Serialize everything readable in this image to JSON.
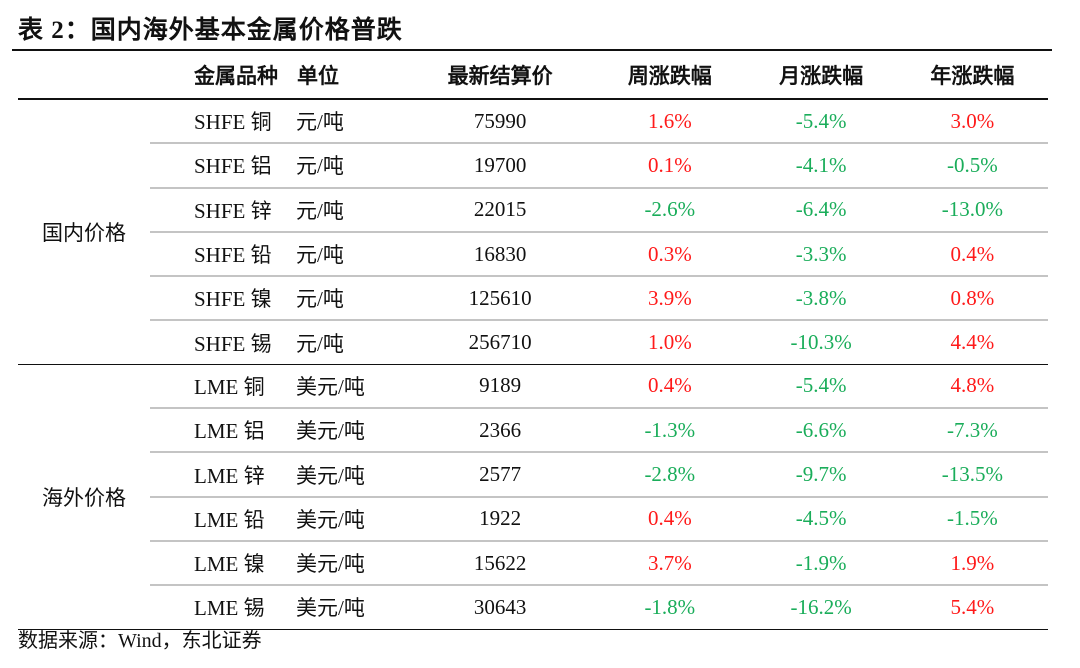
{
  "title": "表 2：国内海外基本金属价格普跌",
  "headers": [
    "金属品种",
    "单位",
    "最新结算价",
    "周涨跌幅",
    "月涨跌幅",
    "年涨跌幅"
  ],
  "groups": [
    {
      "label": "国内价格",
      "rows": [
        [
          "SHFE 铜",
          "元/吨",
          "75990",
          "1.6%",
          "-5.4%",
          "3.0%"
        ],
        [
          "SHFE 铝",
          "元/吨",
          "19700",
          "0.1%",
          "-4.1%",
          "-0.5%"
        ],
        [
          "SHFE 锌",
          "元/吨",
          "22015",
          "-2.6%",
          "-6.4%",
          "-13.0%"
        ],
        [
          "SHFE 铅",
          "元/吨",
          "16830",
          "0.3%",
          "-3.3%",
          "0.4%"
        ],
        [
          "SHFE 镍",
          "元/吨",
          "125610",
          "3.9%",
          "-3.8%",
          "0.8%"
        ],
        [
          "SHFE 锡",
          "元/吨",
          "256710",
          "1.0%",
          "-10.3%",
          "4.4%"
        ]
      ]
    },
    {
      "label": "海外价格",
      "rows": [
        [
          "LME 铜",
          "美元/吨",
          "9189",
          "0.4%",
          "-5.4%",
          "4.8%"
        ],
        [
          "LME 铝",
          "美元/吨",
          "2366",
          "-1.3%",
          "-6.6%",
          "-7.3%"
        ],
        [
          "LME 锌",
          "美元/吨",
          "2577",
          "-2.8%",
          "-9.7%",
          "-13.5%"
        ],
        [
          "LME 铅",
          "美元/吨",
          "1922",
          "0.4%",
          "-4.5%",
          "-1.5%"
        ],
        [
          "LME 镍",
          "美元/吨",
          "15622",
          "3.7%",
          "-1.9%",
          "1.9%"
        ],
        [
          "LME 锡",
          "美元/吨",
          "30643",
          "-1.8%",
          "-16.2%",
          "5.4%"
        ]
      ]
    }
  ],
  "colors": {
    "positive": "#ff1a1a",
    "negative": "#1aad5a"
  },
  "source": "数据来源：Wind，东北证券"
}
